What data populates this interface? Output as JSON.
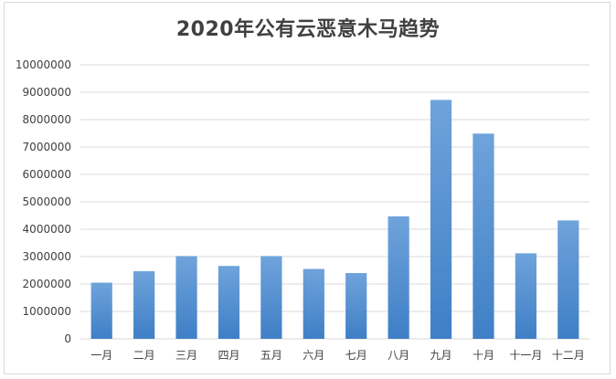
{
  "chart_data": {
    "type": "bar",
    "title": "2020年公有云恶意木马趋势",
    "xlabel": "",
    "ylabel": "",
    "categories": [
      "一月",
      "二月",
      "三月",
      "四月",
      "五月",
      "六月",
      "七月",
      "八月",
      "九月",
      "十月",
      "十一月",
      "十二月"
    ],
    "values": [
      2050000,
      2470000,
      3020000,
      2660000,
      3020000,
      2550000,
      2400000,
      4470000,
      8720000,
      7490000,
      3120000,
      4320000
    ],
    "ylim": [
      0,
      10000000
    ],
    "yticks": [
      "0",
      "1000000",
      "2000000",
      "3000000",
      "4000000",
      "5000000",
      "6000000",
      "7000000",
      "8000000",
      "9000000",
      "10000000"
    ],
    "grid": true,
    "legend": "none",
    "colors": {
      "bar_top": "#6fa3db",
      "bar_bottom": "#3f7fc6",
      "gridline": "#d9d9d9",
      "text": "#404040"
    }
  }
}
